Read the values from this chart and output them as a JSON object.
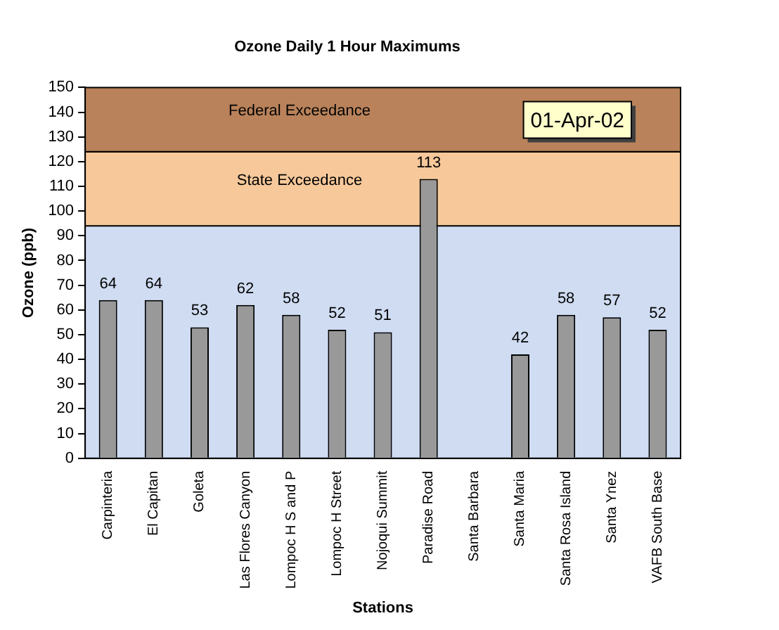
{
  "chart_data": {
    "type": "bar",
    "title": "Ozone Daily 1 Hour Maximums",
    "xlabel": "Stations",
    "ylabel": "Ozone (ppb)",
    "categories": [
      "Carpinteria",
      "El Capitan",
      "Goleta",
      "Las Flores Canyon",
      "Lompoc H S and P",
      "Lompoc H Street",
      "Nojoqui Summit",
      "Paradise Road",
      "Santa Barbara",
      "Santa Maria",
      "Santa Rosa Island",
      "Santa Ynez",
      "VAFB South Base"
    ],
    "values": [
      64,
      64,
      53,
      62,
      58,
      52,
      51,
      113,
      null,
      42,
      58,
      57,
      52
    ],
    "color": "#999999",
    "ylim": [
      0,
      150
    ],
    "yticks": [
      0,
      10,
      20,
      30,
      40,
      50,
      60,
      70,
      80,
      90,
      100,
      110,
      120,
      130,
      140,
      150
    ],
    "grid": false,
    "legend": false,
    "data_labels": true,
    "bands": [
      {
        "axis": "y",
        "from": 94,
        "to": 124,
        "label": "State Exceedance",
        "color": "#f6c89a"
      },
      {
        "axis": "y",
        "from": 124,
        "to": 150,
        "label": "Federal Exceedance",
        "color": "#b9825a"
      }
    ],
    "annotations": [
      "01-Apr-02"
    ]
  }
}
